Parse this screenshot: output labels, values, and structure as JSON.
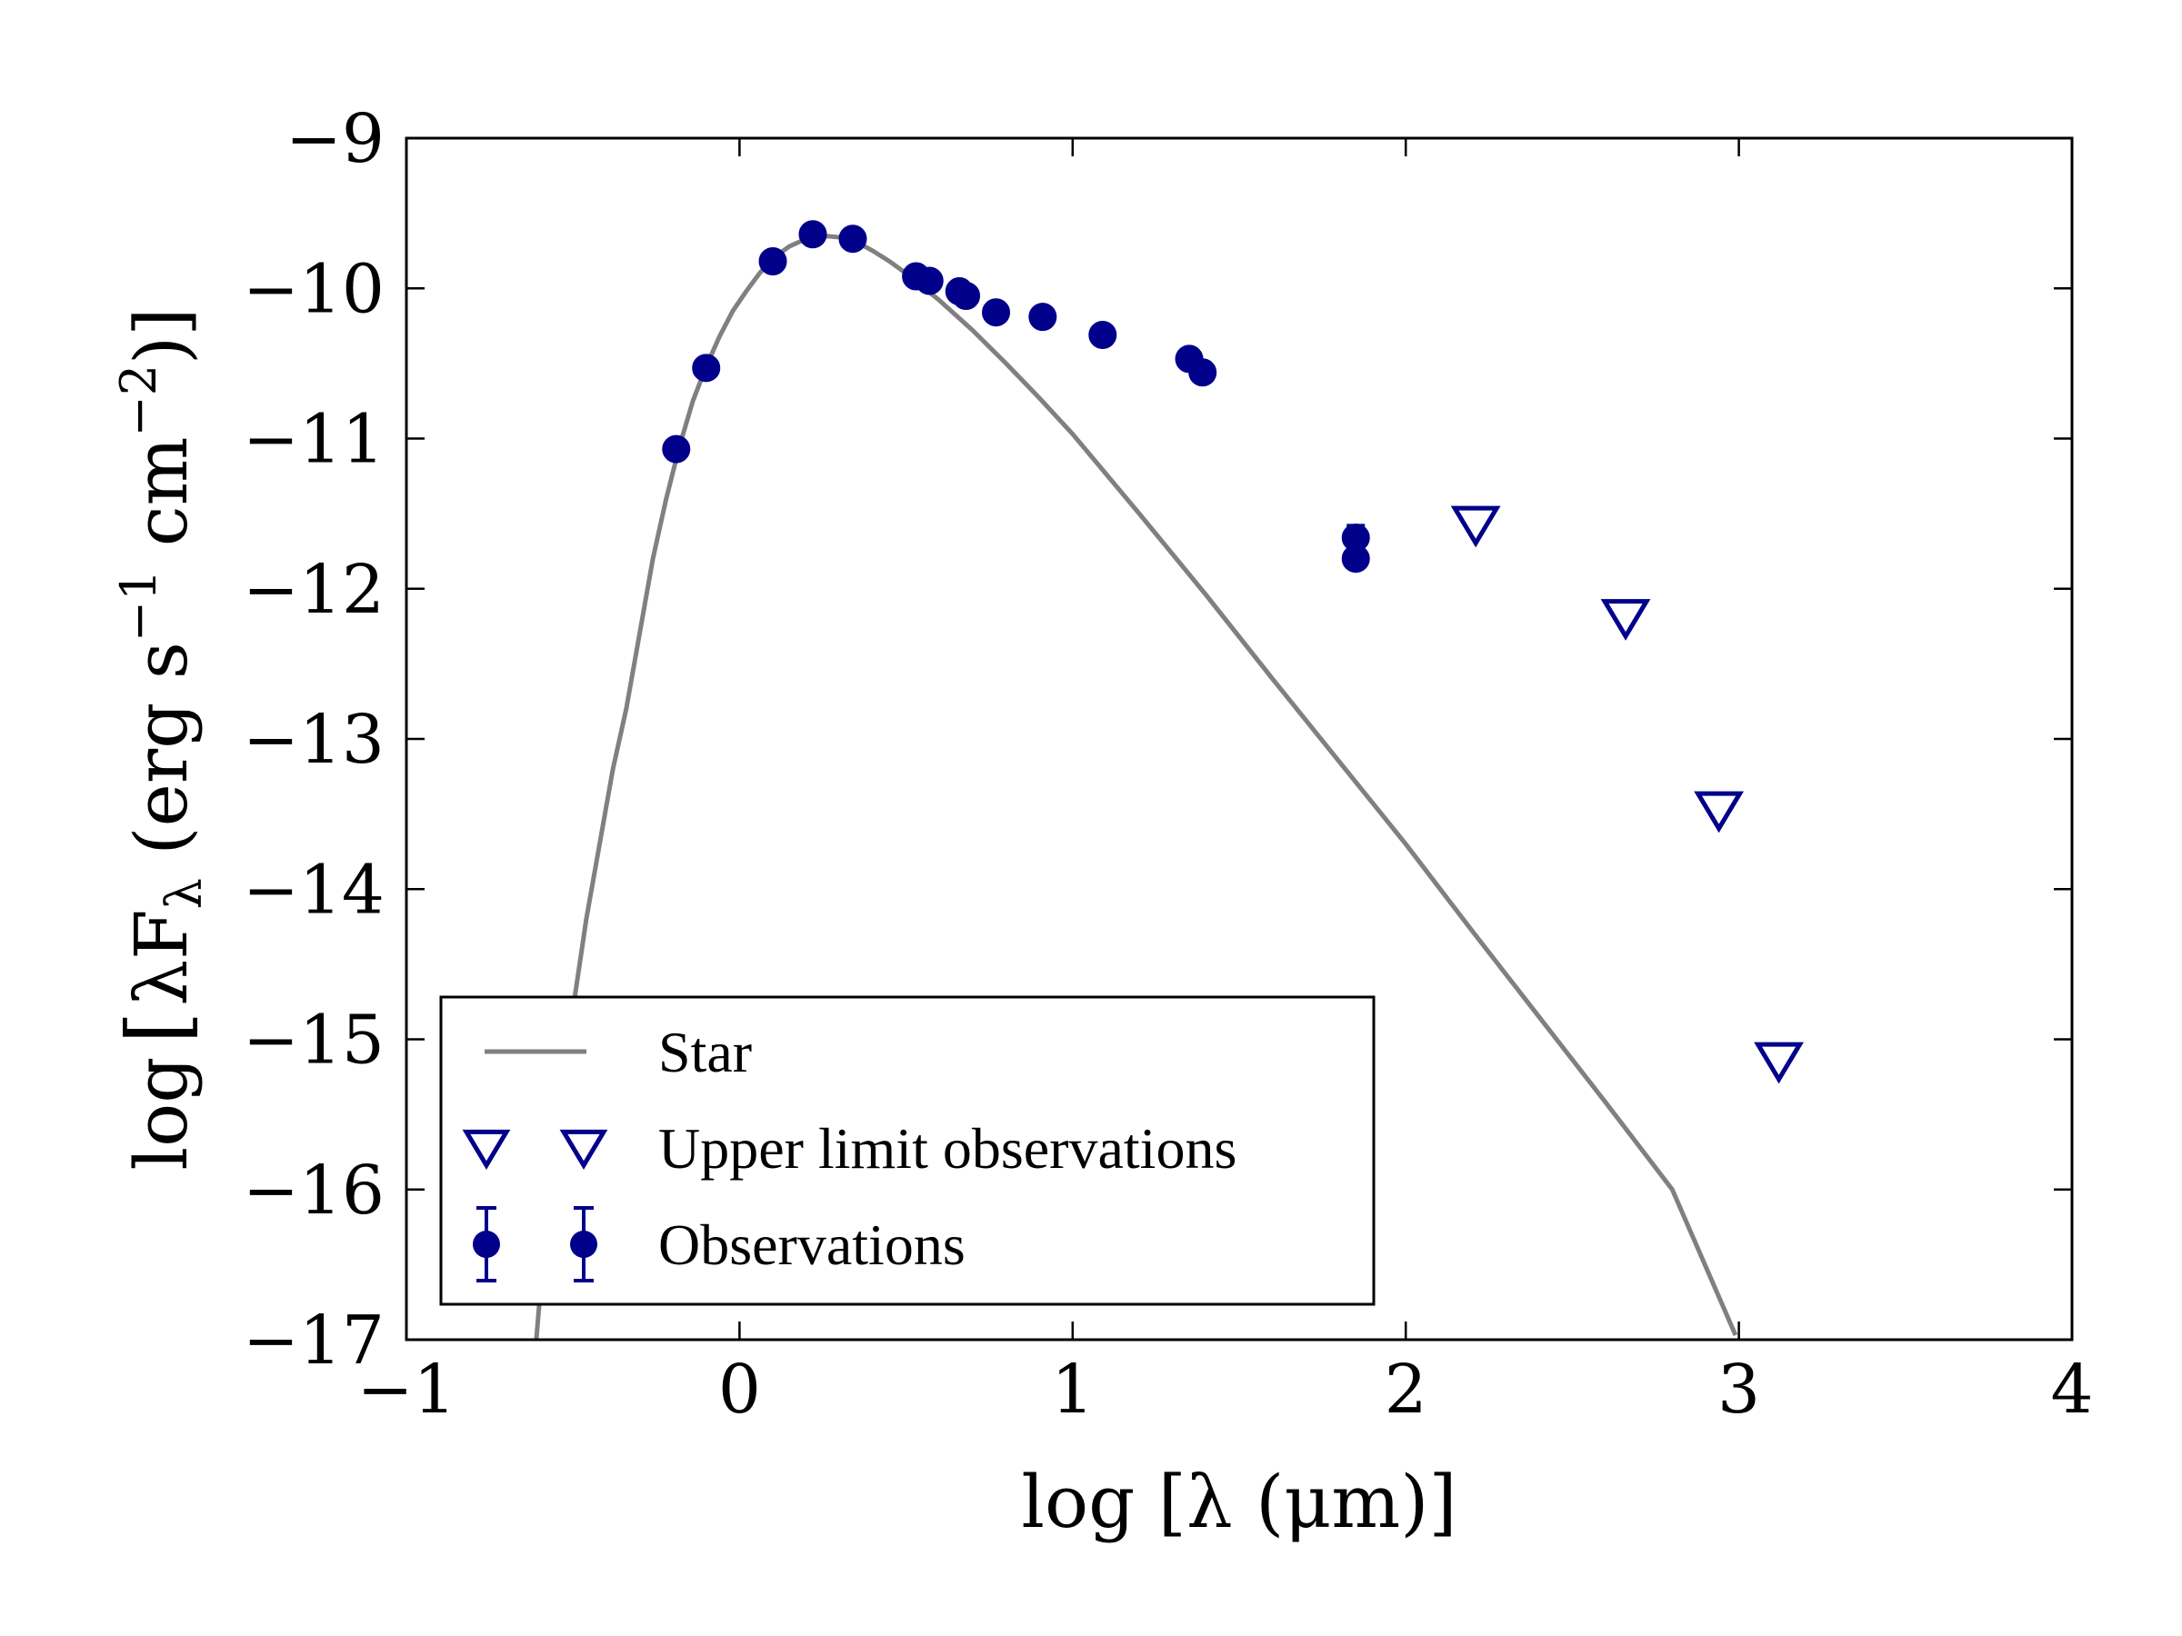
{
  "chart_data": {
    "type": "scatter",
    "title": "",
    "xlabel": "log [λ (μm)]",
    "ylabel": "log [λF_λ (erg s⁻¹ cm⁻²)]",
    "ylabel_parts": {
      "log": "log",
      "lbracket": "[",
      "lambdaF": "λF",
      "sub": "λ",
      "mid": " (erg s",
      "sup1": "−1",
      "cm": " cm",
      "sup2": "−2",
      "end": ")]"
    },
    "xlim": [
      -1,
      4
    ],
    "ylim": [
      -17,
      -9
    ],
    "x_ticks": [
      -1,
      0,
      1,
      2,
      3,
      4
    ],
    "x_tick_labels": [
      "−1",
      "0",
      "1",
      "2",
      "3",
      "4"
    ],
    "y_ticks": [
      -17,
      -16,
      -15,
      -14,
      -13,
      -12,
      -11,
      -10,
      -9
    ],
    "y_tick_labels": [
      "−17",
      "−16",
      "−15",
      "−14",
      "−13",
      "−12",
      "−11",
      "−10",
      "−9"
    ],
    "grid": false,
    "legend_position": "lower-left",
    "colors": {
      "observations": "#00008b",
      "star": "#808080"
    },
    "series": [
      {
        "name": "Star",
        "style": "line",
        "x": [
          -0.61,
          -0.58,
          -0.54,
          -0.5,
          -0.46,
          -0.42,
          -0.38,
          -0.34,
          -0.3,
          -0.26,
          -0.22,
          -0.18,
          -0.14,
          -0.1,
          -0.06,
          -0.02,
          0.02,
          0.06,
          0.1,
          0.15,
          0.2,
          0.25,
          0.3,
          0.35,
          0.4,
          0.45,
          0.5,
          0.55,
          0.6,
          0.7,
          0.8,
          0.9,
          1.0,
          1.2,
          1.4,
          1.6,
          1.8,
          2.0,
          2.2,
          2.4,
          2.6,
          2.8,
          2.99
        ],
        "y": [
          -17.0,
          -16.2,
          -15.5,
          -14.8,
          -14.2,
          -13.7,
          -13.2,
          -12.8,
          -12.3,
          -11.8,
          -11.4,
          -11.05,
          -10.75,
          -10.52,
          -10.32,
          -10.15,
          -10.02,
          -9.9,
          -9.8,
          -9.72,
          -9.67,
          -9.65,
          -9.66,
          -9.69,
          -9.75,
          -9.82,
          -9.9,
          -9.99,
          -10.08,
          -10.28,
          -10.5,
          -10.73,
          -10.97,
          -11.5,
          -12.04,
          -12.6,
          -13.15,
          -13.7,
          -14.28,
          -14.85,
          -15.42,
          -16.0,
          -16.97
        ]
      },
      {
        "name": "Upper limit observations",
        "style": "triangle-down-open",
        "x": [
          2.21,
          2.66,
          2.94,
          3.12
        ],
        "y": [
          -11.55,
          -12.17,
          -13.45,
          -15.12
        ]
      },
      {
        "name": "Observations",
        "style": "circle-errorbar",
        "x": [
          -0.19,
          -0.1,
          0.1,
          0.22,
          0.34,
          0.53,
          0.57,
          0.66,
          0.68,
          0.77,
          0.91,
          1.09,
          1.35,
          1.39,
          1.85,
          1.85
        ],
        "y": [
          -11.07,
          -10.53,
          -9.82,
          -9.64,
          -9.67,
          -9.92,
          -9.95,
          -10.02,
          -10.05,
          -10.16,
          -10.19,
          -10.31,
          -10.47,
          -10.56,
          -11.66,
          -11.8
        ],
        "yerr": [
          0.02,
          0.02,
          0.02,
          0.02,
          0.02,
          0.02,
          0.02,
          0.02,
          0.02,
          0.02,
          0.02,
          0.02,
          0.02,
          0.02,
          0.08,
          0.02
        ]
      }
    ],
    "legend": [
      {
        "label": "Star",
        "style": "line"
      },
      {
        "label": "Upper limit observations",
        "style": "triangle-down-open"
      },
      {
        "label": "Observations",
        "style": "circle-errorbar"
      }
    ]
  }
}
